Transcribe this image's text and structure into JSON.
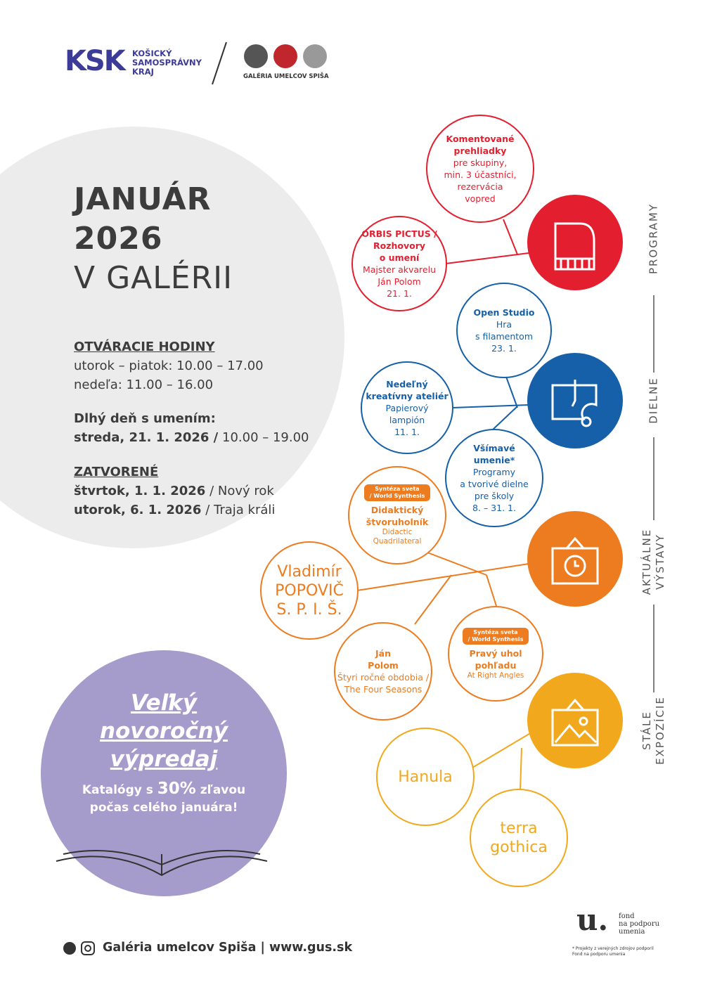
{
  "header": {
    "ksk_mark": "KSK",
    "ksk_lines": [
      "KOŠICKÝ",
      "SAMOSPRÁVNY",
      "KRAJ"
    ],
    "gallery_name": "GALÉRIA UMELCOV SPIŠA"
  },
  "title": [
    "JANUÁR",
    "2026",
    "V GALÉRII"
  ],
  "hours": {
    "heading": "OTVÁRACIE HODINY",
    "lines": [
      "utorok – piatok: 10.00 – 17.00",
      "nedeľa: 11.00 – 16.00"
    ]
  },
  "long_day": {
    "heading": "Dlhý deň s umením:",
    "date": "streda, 21. 1. 2026 /",
    "time": "10.00 – 19.00"
  },
  "closed": {
    "heading": "ZATVORENÉ",
    "rows": [
      {
        "date": "štvrtok, 1. 1. 2026",
        "note": "/ Nový rok"
      },
      {
        "date": "utorok, 6. 1. 2026",
        "note": "/ Traja králi"
      }
    ]
  },
  "sale": {
    "title": [
      "Veľký",
      "novoročný",
      "výpredaj"
    ],
    "text_before": "Katalógy s",
    "highlight": "30%",
    "text_after": "zľavou",
    "line2": "počas celého januára!"
  },
  "side_labels": [
    [
      "PROGRAMY"
    ],
    [
      "DIELNE"
    ],
    [
      "AKTUÁLNE",
      "VÝSTAVY"
    ],
    [
      "STÁLE",
      "EXPOZÍCIE"
    ]
  ],
  "bubbles": [
    {
      "color": "#e31e2f",
      "title": [
        "Komentované",
        "prehliadky"
      ],
      "text": [
        "pre skupiny,",
        "min. 3 účastníci,",
        "rezervácia",
        "vopred"
      ]
    },
    {
      "color": "#e31e2f",
      "title": [
        "ORBIS PICTUS /",
        "Rozhovory",
        "o umení"
      ],
      "text": [
        "Majster akvarelu",
        "Ján Polom",
        "21. 1."
      ]
    },
    {
      "color": "#1560a8",
      "title": [
        "Open Studio"
      ],
      "text": [
        "Hra",
        "s filamentom",
        "23. 1."
      ]
    },
    {
      "color": "#1560a8",
      "title": [
        "Nedeľný",
        "kreatívny ateliér"
      ],
      "text": [
        "Papierový",
        "lampión",
        "11. 1."
      ]
    },
    {
      "color": "#1560a8",
      "title": [
        "Všímavé",
        "umenie*"
      ],
      "text": [
        "Programy",
        "a tvorivé dielne",
        "pre školy",
        "8. – 31. 1."
      ]
    },
    {
      "color": "#ec7c1f",
      "badge": [
        "Syntéza sveta",
        "/ World Synthesis"
      ],
      "title": [
        "Didaktický",
        "štvoruholník"
      ],
      "text": [
        "Didactic",
        "Quadrilateral"
      ]
    },
    {
      "color": "#ec7c1f",
      "title": [
        "Vladimír",
        "POPOVIČ",
        "S. P. I. Š."
      ]
    },
    {
      "color": "#ec7c1f",
      "title": [
        "Ján",
        "Polom"
      ],
      "text": [
        "Štyri ročné obdobia /",
        "The Four Seasons"
      ]
    },
    {
      "color": "#ec7c1f",
      "badge": [
        "Syntéza sveta",
        "/ World Synthesis"
      ],
      "title": [
        "Pravý uhol",
        "pohľadu"
      ],
      "text": [
        "At Right Angles"
      ]
    },
    {
      "color": "#f2a81d",
      "title": [
        "Hanula"
      ]
    },
    {
      "color": "#f2a81d",
      "title": [
        "terra",
        "gothica"
      ]
    }
  ],
  "footer": "Galéria umelcov Spiša | www.gus.sk",
  "fund": {
    "mark": "u.",
    "lines": [
      "fond",
      "na podporu",
      "umenia"
    ],
    "note": [
      "* Projekty z verejných zdrojov podporil",
      "Fond na podporu umenia"
    ]
  }
}
